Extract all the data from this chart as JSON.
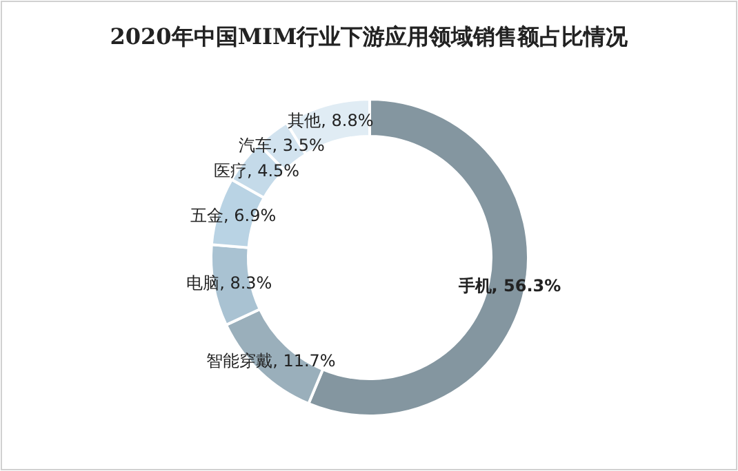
{
  "chart_data": {
    "type": "donut",
    "title": "2020年中国MIM行业下游应用领域销售额占比情况",
    "categories": [
      "手机",
      "智能穿戴",
      "电脑",
      "五金",
      "医疗",
      "汽车",
      "其他"
    ],
    "values": [
      56.3,
      11.7,
      8.3,
      6.9,
      4.5,
      3.5,
      8.8
    ],
    "value_labels": [
      "56.3%",
      "11.7%",
      "8.3%",
      "6.9%",
      "4.5%",
      "3.5%",
      "8.8%"
    ],
    "colors": [
      "#8496a0",
      "#9aafbb",
      "#a9c2d2",
      "#b9d3e4",
      "#c4dae9",
      "#d2e3ef",
      "#e0ecf4"
    ]
  }
}
